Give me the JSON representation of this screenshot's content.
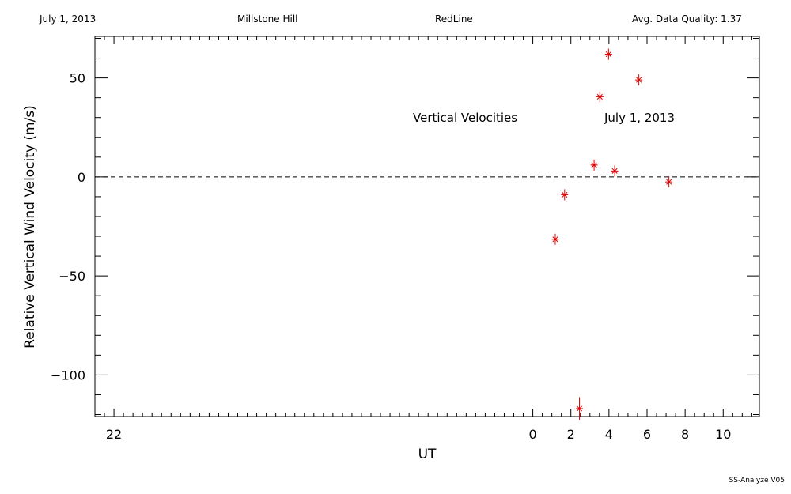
{
  "header": {
    "date": "July 1, 2013",
    "site": "Millstone Hill",
    "line": "RedLine",
    "quality": "Avg. Data Quality: 1.37"
  },
  "footer": "SS-Analyze V05",
  "chart_data": {
    "type": "scatter",
    "xlabel": "UT",
    "ylabel": "Relative Vertical Wind Velocity (m/s)",
    "xlim": [
      -23.0,
      11.9
    ],
    "ylim": [
      -121,
      71
    ],
    "x_ticks": [
      {
        "value": -22,
        "label": "22"
      },
      {
        "value": 0,
        "label": "0"
      },
      {
        "value": 2,
        "label": "2"
      },
      {
        "value": 4,
        "label": "4"
      },
      {
        "value": 6,
        "label": "6"
      },
      {
        "value": 8,
        "label": "8"
      },
      {
        "value": 10,
        "label": "10"
      }
    ],
    "y_ticks": [
      {
        "value": 50,
        "label": "50"
      },
      {
        "value": 0,
        "label": "0"
      },
      {
        "value": -50,
        "label": "−50"
      },
      {
        "value": -100,
        "label": "−100"
      }
    ],
    "reference_line": 0,
    "annotations": [
      "Vertical Velocities",
      "July 1, 2013"
    ],
    "marker_color": "#dd0000",
    "series": [
      {
        "points": [
          {
            "x": 1.18,
            "y": -31.5,
            "err": 1
          },
          {
            "x": 1.67,
            "y": -9,
            "err": 1
          },
          {
            "x": 2.45,
            "y": -117,
            "err": 4
          },
          {
            "x": 3.22,
            "y": 6,
            "err": 1
          },
          {
            "x": 3.52,
            "y": 40.5,
            "err": 1
          },
          {
            "x": 3.98,
            "y": 62,
            "err": 1
          },
          {
            "x": 4.3,
            "y": 3,
            "err": 1
          },
          {
            "x": 5.57,
            "y": 49,
            "err": 1
          },
          {
            "x": 7.15,
            "y": -2.5,
            "err": 1
          }
        ]
      }
    ]
  }
}
